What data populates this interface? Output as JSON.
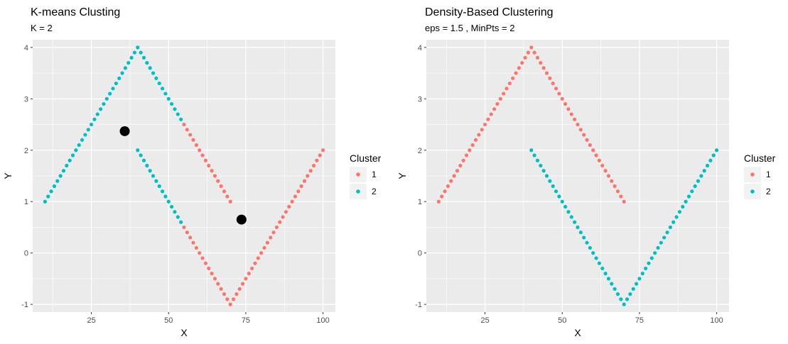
{
  "colors": {
    "cluster_1": "#F8766D",
    "cluster_2": "#00BFC4",
    "center": "#000000",
    "panel_bg": "#EBEBEB",
    "grid": "#FFFFFF"
  },
  "chart_data": [
    {
      "type": "scatter",
      "title": "K-means Clusting",
      "subtitle": "K = 2",
      "xlabel": "X",
      "ylabel": "Y",
      "xlim": [
        6,
        104
      ],
      "ylim": [
        -1.15,
        4.15
      ],
      "xticks": [
        25,
        50,
        75,
        100
      ],
      "yticks": [
        -1,
        0,
        1,
        2,
        3,
        4
      ],
      "grid": true,
      "legend": {
        "title": "Cluster",
        "position": "right",
        "entries": [
          "1",
          "2"
        ]
      },
      "series": [
        {
          "name": "1",
          "color": "#F8766D",
          "segments": [
            {
              "from": [
                55,
                2.5
              ],
              "to": [
                70,
                1
              ],
              "step": 1
            },
            {
              "from": [
                55,
                0.5
              ],
              "to": [
                70,
                -1
              ],
              "step": 1
            },
            {
              "from": [
                71,
                -0.9
              ],
              "to": [
                100,
                2
              ],
              "step": 1
            }
          ]
        },
        {
          "name": "2",
          "color": "#00BFC4",
          "segments": [
            {
              "from": [
                10,
                1
              ],
              "to": [
                40,
                4
              ],
              "step": 1
            },
            {
              "from": [
                41,
                3.9
              ],
              "to": [
                54,
                2.6
              ],
              "step": 1
            },
            {
              "from": [
                40,
                2
              ],
              "to": [
                54,
                0.6
              ],
              "step": 1
            }
          ]
        }
      ],
      "centers": [
        {
          "x": 35.8,
          "y": 2.37
        },
        {
          "x": 73.6,
          "y": 0.65
        }
      ]
    },
    {
      "type": "scatter",
      "title": "Density-Based Clustering",
      "subtitle": "eps = 1.5 , MinPts = 2",
      "xlabel": "X",
      "ylabel": "Y",
      "xlim": [
        6,
        104
      ],
      "ylim": [
        -1.15,
        4.15
      ],
      "xticks": [
        25,
        50,
        75,
        100
      ],
      "yticks": [
        -1,
        0,
        1,
        2,
        3,
        4
      ],
      "grid": true,
      "legend": {
        "title": "Cluster",
        "position": "right",
        "entries": [
          "1",
          "2"
        ]
      },
      "series": [
        {
          "name": "1",
          "color": "#F8766D",
          "segments": [
            {
              "from": [
                10,
                1
              ],
              "to": [
                40,
                4
              ],
              "step": 1
            },
            {
              "from": [
                41,
                3.9
              ],
              "to": [
                70,
                1
              ],
              "step": 1
            }
          ]
        },
        {
          "name": "2",
          "color": "#00BFC4",
          "segments": [
            {
              "from": [
                40,
                2
              ],
              "to": [
                70,
                -1
              ],
              "step": 1
            },
            {
              "from": [
                71,
                -0.9
              ],
              "to": [
                100,
                2
              ],
              "step": 1
            }
          ]
        }
      ],
      "centers": []
    }
  ]
}
